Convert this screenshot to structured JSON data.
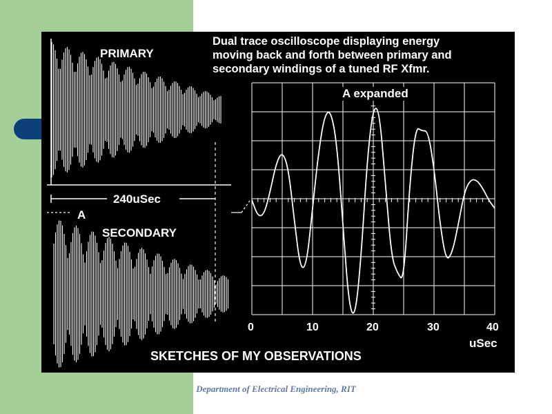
{
  "colors": {
    "sidebar": "#a4cf98",
    "bullet": "#0d3f78",
    "figure_bg": "#000000",
    "trace": "#ffffff",
    "footer_text": "#5f7aa3"
  },
  "figure": {
    "caption_lines": [
      "Dual trace oscilloscope displaying energy",
      "moving back and forth between primary and",
      "secondary windings of a tuned RF Xfmr."
    ],
    "primary_label": "PRIMARY",
    "secondary_label": "SECONDARY",
    "a_marker": "A",
    "duration_label": "240uSec",
    "expanded_label": "A expanded",
    "x_ticks": [
      "0",
      "10",
      "20",
      "30",
      "40"
    ],
    "x_unit": "uSec",
    "title": "SKETCHES OF MY OBSERVATIONS"
  },
  "chart_data": {
    "type": "line",
    "title": "A expanded",
    "xlabel": "uSec",
    "xlim": [
      0,
      40
    ],
    "x_ticks": [
      0,
      10,
      20,
      30,
      40
    ],
    "grid": true,
    "series": [
      {
        "x": [
          0,
          1,
          2,
          3,
          4,
          5,
          6,
          7,
          8,
          9,
          10,
          11,
          12,
          13,
          14,
          15,
          16,
          17,
          18,
          19,
          20,
          21,
          22,
          23,
          24,
          25,
          26,
          27,
          28,
          29,
          30,
          31,
          32,
          33,
          34,
          35,
          36,
          37,
          38,
          39,
          40
        ],
        "y": [
          0,
          -0.2,
          -0.18,
          0.1,
          0.45,
          0.6,
          0.4,
          -0.25,
          -0.85,
          -0.8,
          -0.1,
          0.6,
          1.05,
          1.1,
          0.7,
          -0.3,
          -1.3,
          -1.45,
          -0.7,
          0.5,
          1.15,
          1.1,
          0.2,
          -0.7,
          -0.9,
          -1.0,
          0.2,
          0.9,
          0.85,
          0.85,
          0.4,
          -0.3,
          -0.75,
          -0.65,
          -0.3,
          0.1,
          0.25,
          0.25,
          0.15,
          0.0,
          -0.1
        ]
      }
    ]
  },
  "footer": "Department of Electrical Engineering, RIT"
}
